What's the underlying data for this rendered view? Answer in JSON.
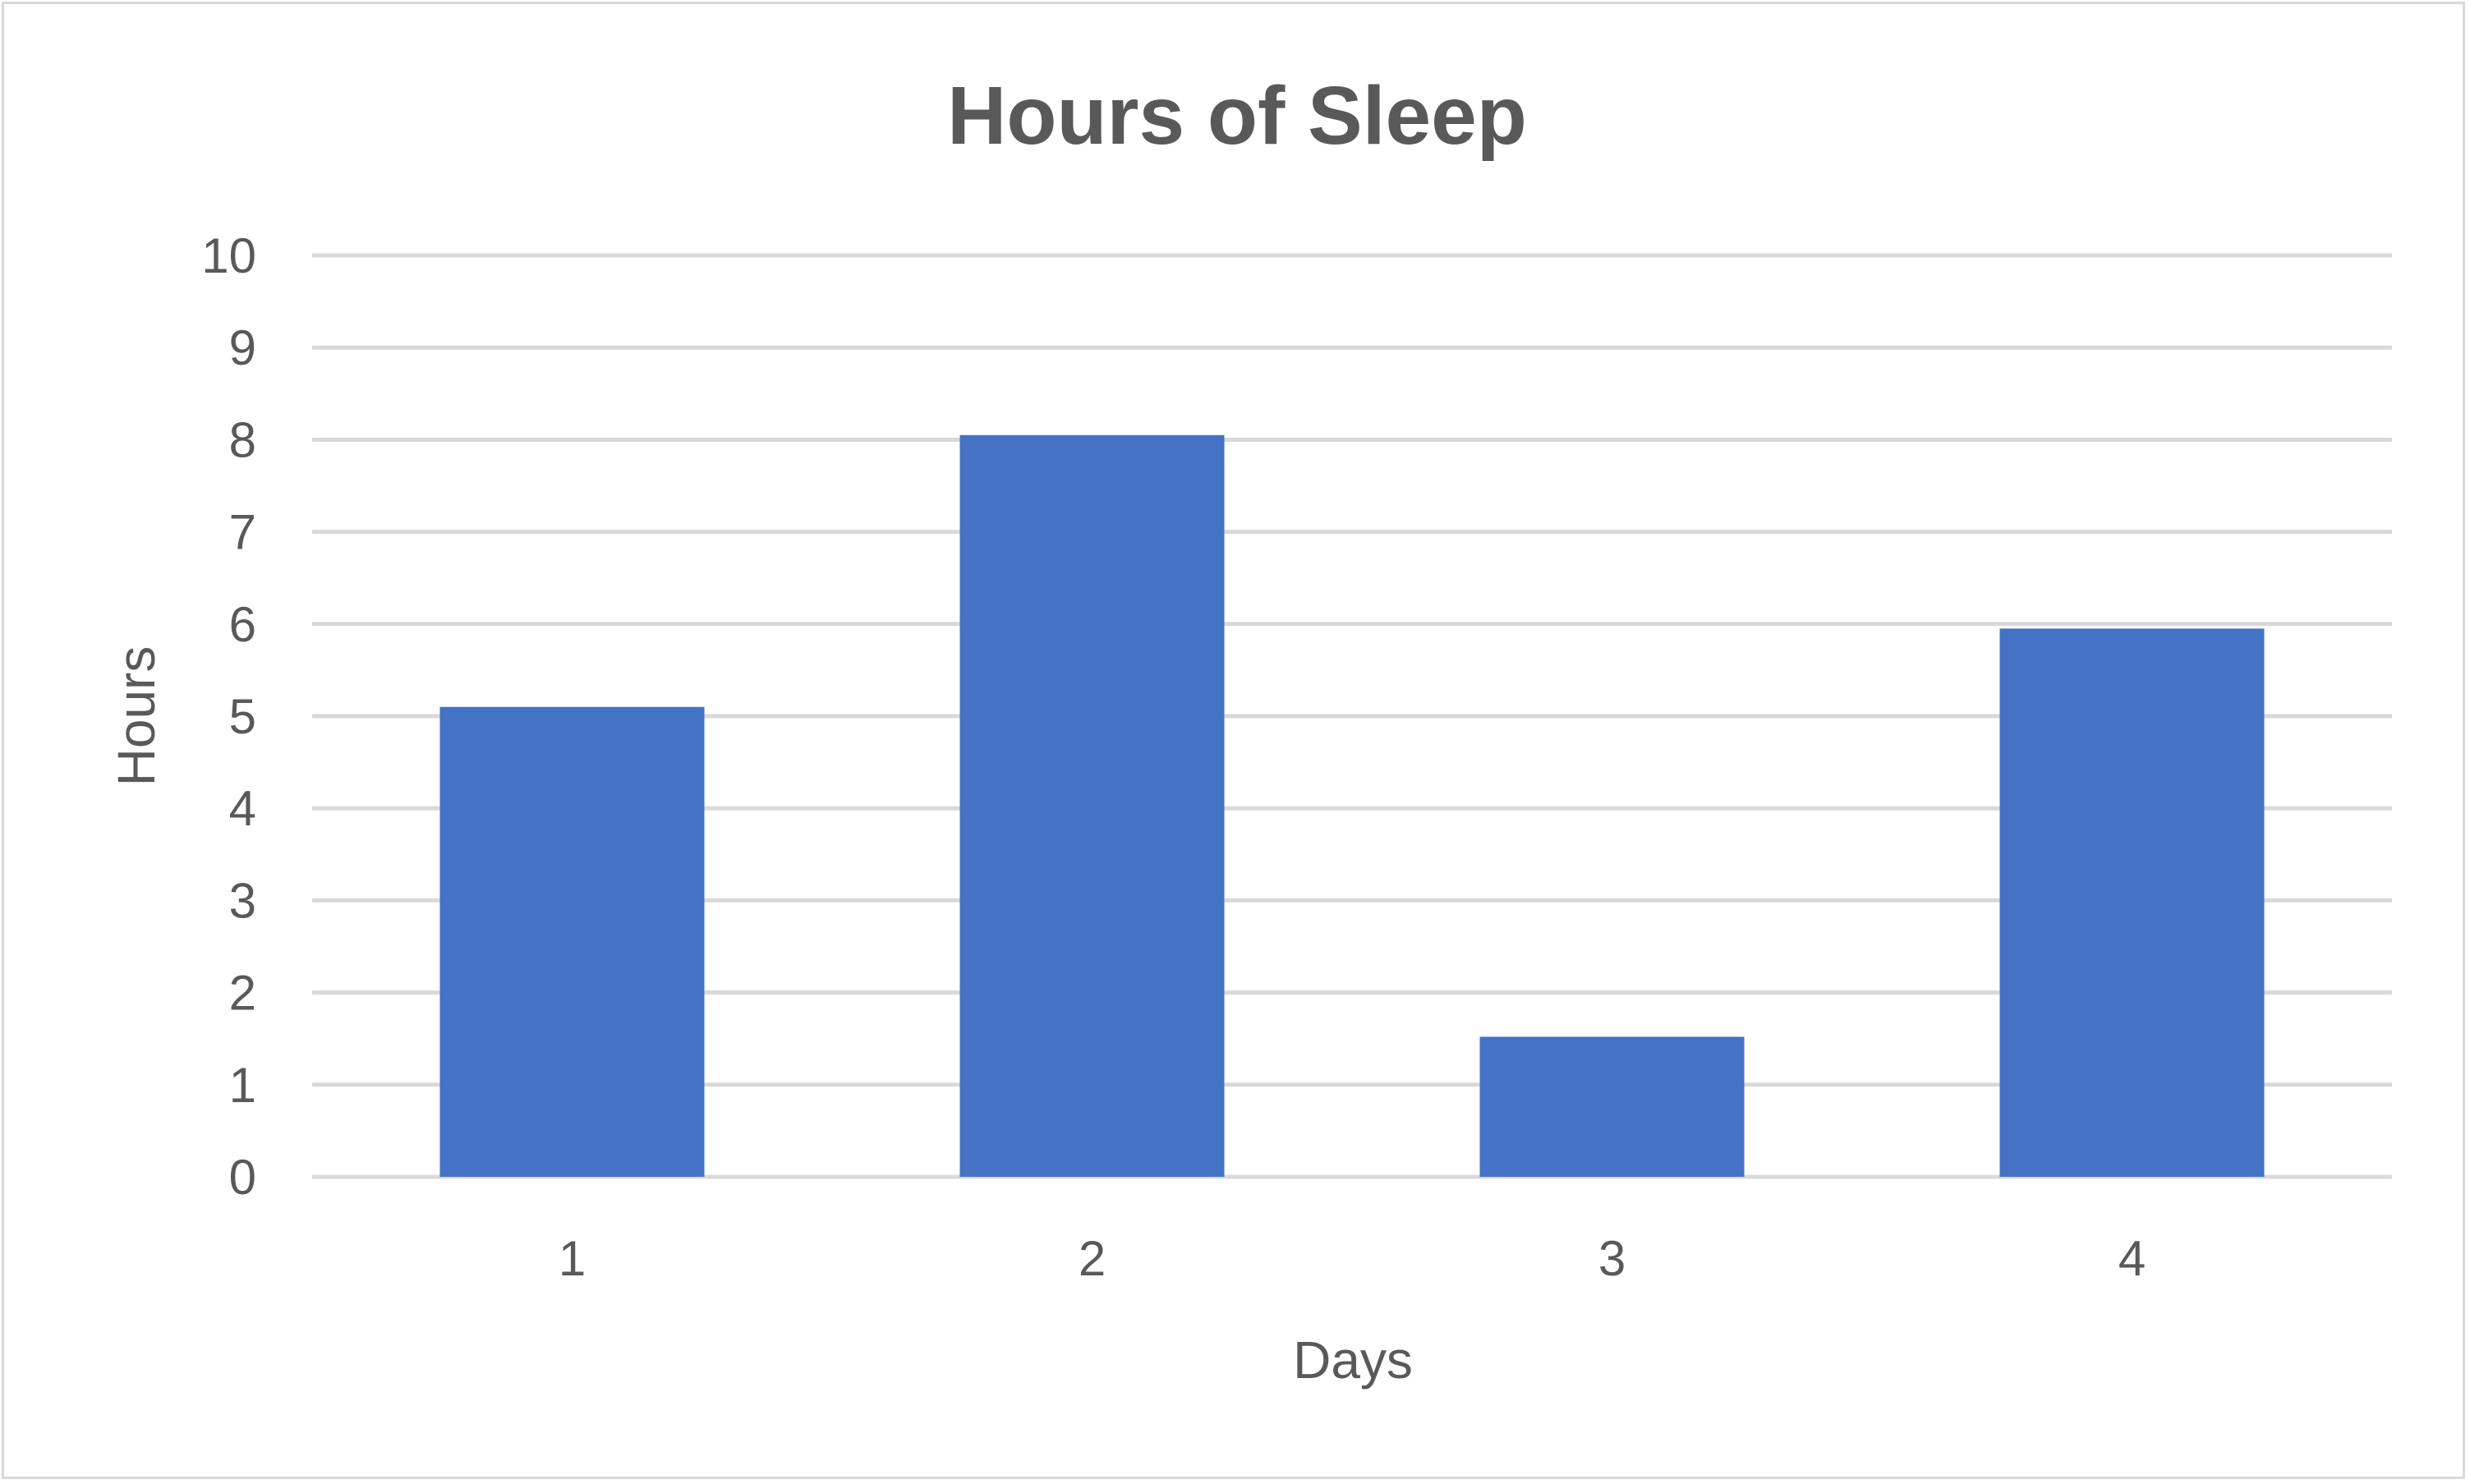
{
  "chart_data": {
    "type": "bar",
    "title": "Hours of Sleep",
    "xlabel": "Days",
    "ylabel": "Hours",
    "categories": [
      "1",
      "2",
      "3",
      "4"
    ],
    "values": [
      5.1,
      8.05,
      1.52,
      5.95
    ],
    "ylim": [
      0,
      10
    ],
    "yticks": [
      "0",
      "1",
      "2",
      "3",
      "4",
      "5",
      "6",
      "7",
      "8",
      "9",
      "10"
    ],
    "grid": true,
    "legend": "none",
    "bar_color": "#4472C4",
    "gridline_color": "#d9d9d9",
    "text_color": "#595959"
  }
}
